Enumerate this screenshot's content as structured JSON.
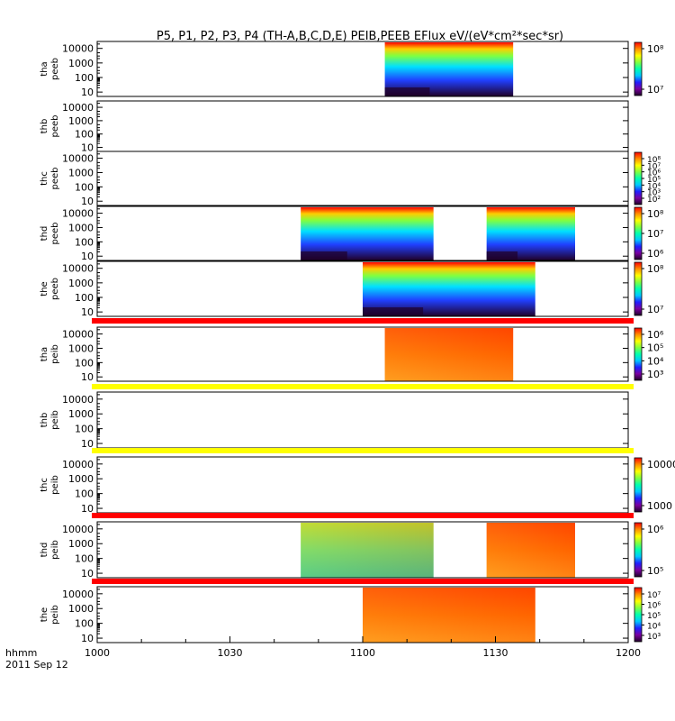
{
  "title": "P5, P1, P2, P3, P4 (TH-A,B,C,D,E) PEIB,PEEB EFlux eV/(eV*cm²*sec*sr)",
  "time_axis": {
    "ticks": [
      "1000",
      "1030",
      "1100",
      "1130",
      "1200"
    ],
    "format_label": "hhmm",
    "date_label": "2011 Sep 12"
  },
  "y_ticks": [
    "10",
    "100",
    "1000",
    "10000"
  ],
  "colors": {
    "flag_red": "#ff0000",
    "flag_yellow": "#ffff00",
    "scale": [
      "#200028",
      "#7a00a0",
      "#2020ff",
      "#00c8ff",
      "#00ffb0",
      "#80ff40",
      "#ffff00",
      "#ff9000",
      "#ff0000"
    ]
  },
  "panels": [
    {
      "label": "tha peeb",
      "yl1": "tha",
      "yl2": "peeb",
      "type": "electron",
      "flag": null,
      "data_blocks": [
        {
          "start": "1105",
          "end": "1134"
        }
      ],
      "colorbar": {
        "ticks": [
          "10⁸",
          "10⁷"
        ]
      }
    },
    {
      "label": "thb peeb",
      "yl1": "thb",
      "yl2": "peeb",
      "type": "empty",
      "flag": null,
      "data_blocks": [],
      "colorbar": null
    },
    {
      "label": "thc peeb",
      "yl1": "thc",
      "yl2": "peeb",
      "type": "empty",
      "flag": null,
      "data_blocks": [],
      "colorbar": {
        "ticks": [
          "10⁸",
          "10⁷",
          "10⁶",
          "10⁵",
          "10⁴",
          "10³",
          "10²"
        ]
      }
    },
    {
      "label": "thd peeb",
      "yl1": "thd",
      "yl2": "peeb",
      "type": "electron",
      "flag": null,
      "data_blocks": [
        {
          "start": "1046",
          "end": "1116"
        },
        {
          "start": "1128",
          "end": "1148"
        }
      ],
      "colorbar": {
        "ticks": [
          "10⁸",
          "10⁷",
          "10⁶"
        ]
      }
    },
    {
      "label": "the peeb",
      "yl1": "the",
      "yl2": "peeb",
      "type": "electron",
      "flag": null,
      "data_blocks": [
        {
          "start": "1100",
          "end": "1139"
        }
      ],
      "colorbar": {
        "ticks": [
          "10⁸",
          "10⁷"
        ]
      }
    },
    {
      "label": "tha peib",
      "yl1": "tha",
      "yl2": "peib",
      "type": "ion",
      "flag": "red",
      "data_blocks": [
        {
          "start": "1105",
          "end": "1134"
        }
      ],
      "colorbar": {
        "ticks": [
          "10⁶",
          "10⁵",
          "10⁴",
          "10³"
        ]
      }
    },
    {
      "label": "thb peib",
      "yl1": "thb",
      "yl2": "peib",
      "type": "empty",
      "flag": "yellow",
      "data_blocks": [],
      "colorbar": null
    },
    {
      "label": "thc peib",
      "yl1": "thc",
      "yl2": "peib",
      "type": "empty",
      "flag": "yellow",
      "data_blocks": [],
      "colorbar": {
        "ticks": [
          "10000",
          "1000"
        ]
      }
    },
    {
      "label": "thd peib",
      "yl1": "thd",
      "yl2": "peib",
      "type": "ion-green",
      "flag": "red",
      "data_blocks": [
        {
          "start": "1046",
          "end": "1116"
        },
        {
          "start": "1128",
          "end": "1148"
        }
      ],
      "colorbar": {
        "ticks": [
          "10⁶",
          "10⁵"
        ]
      }
    },
    {
      "label": "the peib",
      "yl1": "the",
      "yl2": "peib",
      "type": "ion",
      "flag": "red",
      "data_blocks": [
        {
          "start": "1100",
          "end": "1139"
        }
      ],
      "colorbar": {
        "ticks": [
          "10⁷",
          "10⁶",
          "10⁵",
          "10⁴",
          "10³"
        ]
      }
    }
  ],
  "chart_data": {
    "type": "heatmap",
    "title": "P5, P1, P2, P3, P4 (TH-A,B,C,D,E) PEIB,PEEB EFlux eV/(eV*cm²*sec*sr)",
    "xlabel": "hhmm",
    "x_range": [
      "1000",
      "1200"
    ],
    "y_scale": "log",
    "y_range": [
      5,
      30000
    ],
    "series": [
      {
        "name": "tha peeb",
        "coverage": [
          [
            "1105",
            "1134"
          ]
        ]
      },
      {
        "name": "thb peeb",
        "coverage": []
      },
      {
        "name": "thc peeb",
        "coverage": []
      },
      {
        "name": "thd peeb",
        "coverage": [
          [
            "1046",
            "1116"
          ],
          [
            "1128",
            "1148"
          ]
        ]
      },
      {
        "name": "the peeb",
        "coverage": [
          [
            "1100",
            "1139"
          ]
        ]
      },
      {
        "name": "tha peib",
        "coverage": [
          [
            "1105",
            "1134"
          ]
        ]
      },
      {
        "name": "thb peib",
        "coverage": []
      },
      {
        "name": "thc peib",
        "coverage": []
      },
      {
        "name": "thd peib",
        "coverage": [
          [
            "1046",
            "1116"
          ],
          [
            "1128",
            "1148"
          ]
        ]
      },
      {
        "name": "the peib",
        "coverage": [
          [
            "1100",
            "1139"
          ]
        ]
      }
    ]
  }
}
